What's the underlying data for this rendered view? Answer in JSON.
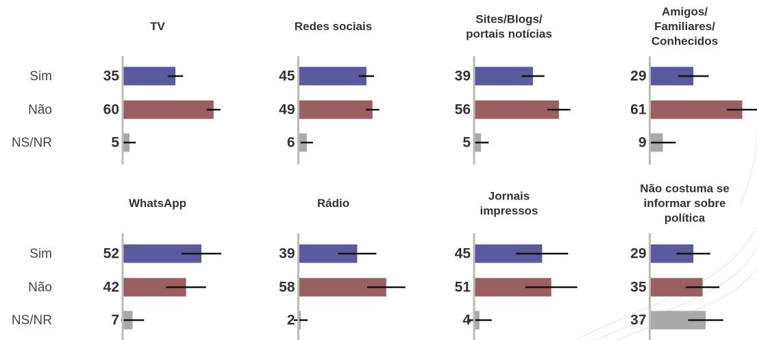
{
  "chart_data": {
    "type": "bar",
    "categories": [
      "Sim",
      "Não",
      "NS/NR"
    ],
    "colors": [
      "#5c5a9f",
      "#9a5f61",
      "#a9a9a9"
    ],
    "xlim": [
      0,
      100
    ],
    "panels": [
      {
        "title": "TV",
        "values": [
          35,
          60,
          5
        ],
        "errors": [
          5,
          4.5,
          4
        ]
      },
      {
        "title": "Redes sociais",
        "values": [
          45,
          49,
          6
        ],
        "errors": [
          5,
          4.5,
          4
        ]
      },
      {
        "title": "Sites/Blogs/\nportais notícias",
        "values": [
          39,
          56,
          5
        ],
        "errors": [
          7.5,
          7.5,
          5
        ]
      },
      {
        "title": "Amigos/\nFamiliares/\nConhecidos",
        "values": [
          29,
          61,
          9
        ],
        "errors": [
          10,
          10,
          8.5
        ]
      },
      {
        "title": "WhatsApp",
        "values": [
          52,
          42,
          7
        ],
        "errors": [
          13,
          13,
          7.5
        ]
      },
      {
        "title": "Rádio",
        "values": [
          39,
          58,
          2
        ],
        "errors": [
          12.5,
          12.5,
          4.5
        ]
      },
      {
        "title": "Jornais\nimpressos",
        "values": [
          45,
          51,
          4
        ],
        "errors": [
          17,
          17,
          8
        ]
      },
      {
        "title": "Não costuma se\ninformar sobre\npolítica",
        "values": [
          29,
          35,
          37
        ],
        "errors": [
          11,
          11,
          11.5
        ]
      }
    ]
  }
}
